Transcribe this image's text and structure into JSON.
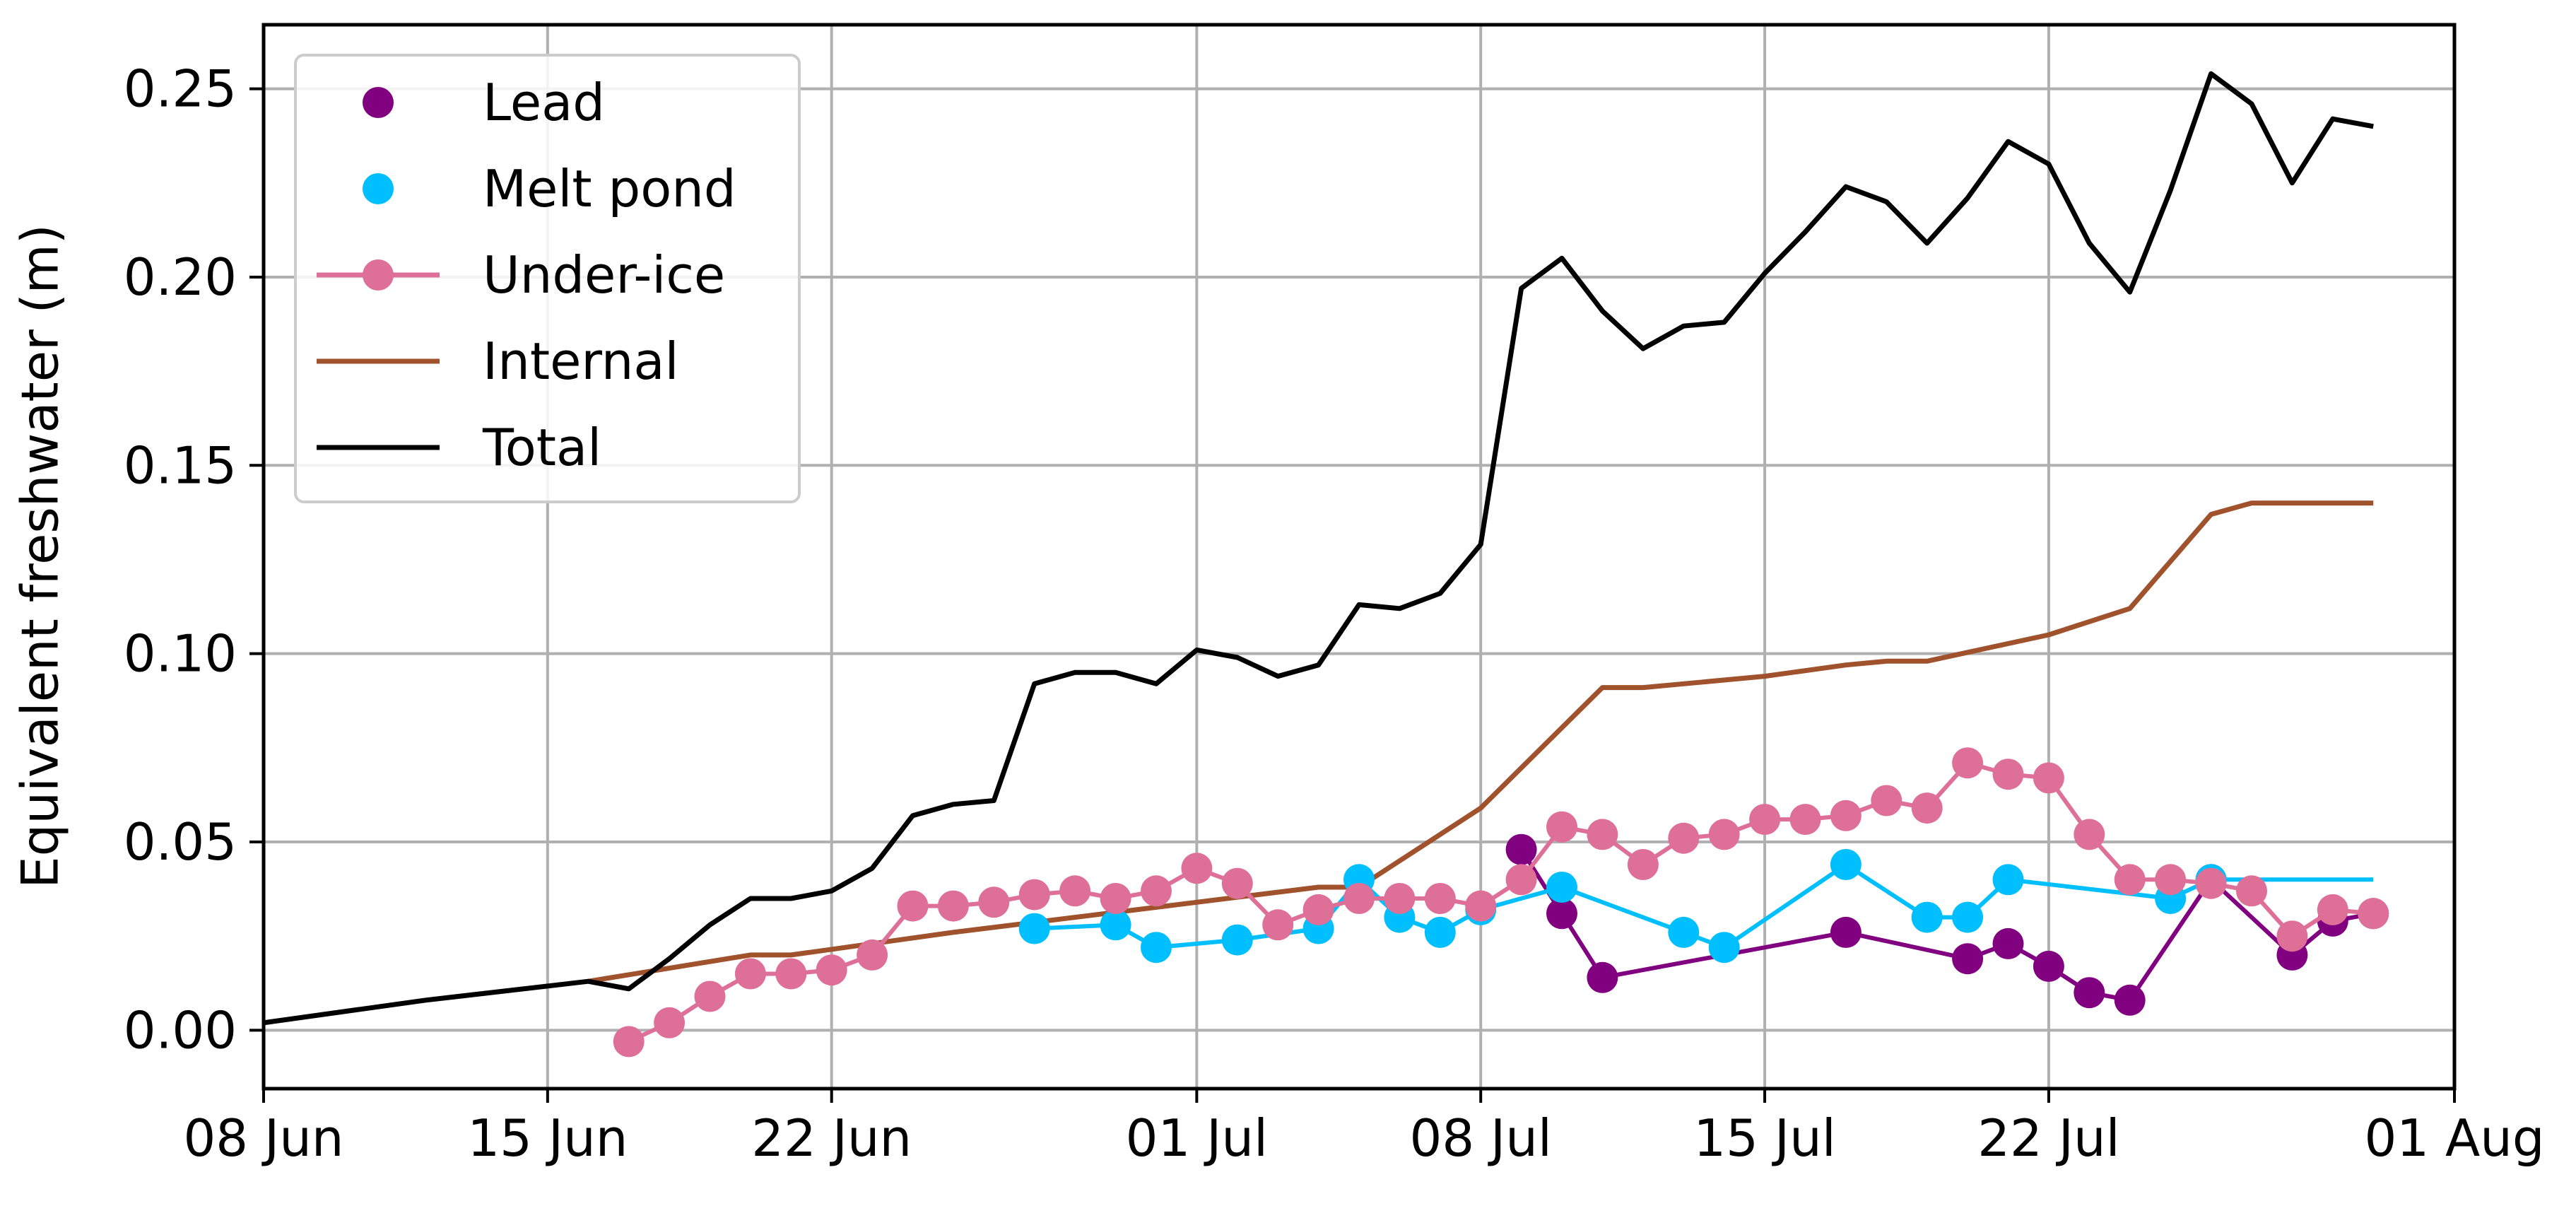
{
  "chart_data": {
    "type": "line",
    "title": "",
    "xlabel": "",
    "ylabel": "Equivalent freshwater (m)",
    "x_axis": {
      "type": "date",
      "range": [
        "2020-06-08",
        "2020-08-01"
      ],
      "ticks": [
        {
          "date": "2020-06-08",
          "label": "08 Jun"
        },
        {
          "date": "2020-06-15",
          "label": "15 Jun"
        },
        {
          "date": "2020-06-22",
          "label": "22 Jun"
        },
        {
          "date": "2020-07-01",
          "label": "01 Jul"
        },
        {
          "date": "2020-07-08",
          "label": "08 Jul"
        },
        {
          "date": "2020-07-15",
          "label": "15 Jul"
        },
        {
          "date": "2020-07-22",
          "label": "22 Jul"
        },
        {
          "date": "2020-08-01",
          "label": "01 Aug"
        }
      ]
    },
    "y_axis": {
      "range": [
        -0.0155,
        0.267
      ],
      "ticks": [
        "0.00",
        "0.05",
        "0.10",
        "0.15",
        "0.20",
        "0.25"
      ]
    },
    "grid": true,
    "legend": {
      "position": "top-left",
      "entries": [
        "Lead",
        "Melt pond",
        "Under-ice",
        "Internal",
        "Total"
      ]
    },
    "series": [
      {
        "name": "Lead",
        "color": "#800080",
        "style": "line-markers",
        "points": [
          [
            "2020-07-09",
            0.048
          ],
          [
            "2020-07-10",
            0.031
          ],
          [
            "2020-07-11",
            0.014
          ],
          [
            "2020-07-17",
            0.026
          ],
          [
            "2020-07-20",
            0.019
          ],
          [
            "2020-07-21",
            0.023
          ],
          [
            "2020-07-22",
            0.017
          ],
          [
            "2020-07-23",
            0.01
          ],
          [
            "2020-07-24",
            0.008
          ],
          [
            "2020-07-26",
            0.04
          ],
          [
            "2020-07-28",
            0.02
          ],
          [
            "2020-07-29",
            0.029
          ],
          [
            "2020-07-30",
            0.031
          ]
        ]
      },
      {
        "name": "Melt pond",
        "color": "#00BFFF",
        "style": "line-markers",
        "points": [
          [
            "2020-06-27",
            0.027
          ],
          [
            "2020-06-29",
            0.028
          ],
          [
            "2020-06-30",
            0.022
          ],
          [
            "2020-07-02",
            0.024
          ],
          [
            "2020-07-04",
            0.027
          ],
          [
            "2020-07-05",
            0.04
          ],
          [
            "2020-07-06",
            0.03
          ],
          [
            "2020-07-07",
            0.026
          ],
          [
            "2020-07-08",
            0.032
          ],
          [
            "2020-07-10",
            0.038
          ],
          [
            "2020-07-13",
            0.026
          ],
          [
            "2020-07-14",
            0.022
          ],
          [
            "2020-07-17",
            0.044
          ],
          [
            "2020-07-19",
            0.03
          ],
          [
            "2020-07-20",
            0.03
          ],
          [
            "2020-07-21",
            0.04
          ],
          [
            "2020-07-25",
            0.035
          ],
          [
            "2020-07-26",
            0.04
          ],
          [
            "2020-07-30",
            0.04
          ]
        ],
        "unmarked_from": "2020-07-27"
      },
      {
        "name": "Under-ice",
        "color": "#DE7098",
        "style": "line-markers",
        "points": [
          [
            "2020-06-17",
            -0.003
          ],
          [
            "2020-06-18",
            0.002
          ],
          [
            "2020-06-19",
            0.009
          ],
          [
            "2020-06-20",
            0.015
          ],
          [
            "2020-06-21",
            0.015
          ],
          [
            "2020-06-22",
            0.016
          ],
          [
            "2020-06-23",
            0.02
          ],
          [
            "2020-06-24",
            0.033
          ],
          [
            "2020-06-25",
            0.033
          ],
          [
            "2020-06-26",
            0.034
          ],
          [
            "2020-06-27",
            0.036
          ],
          [
            "2020-06-28",
            0.037
          ],
          [
            "2020-06-29",
            0.035
          ],
          [
            "2020-06-30",
            0.037
          ],
          [
            "2020-07-01",
            0.043
          ],
          [
            "2020-07-02",
            0.039
          ],
          [
            "2020-07-03",
            0.028
          ],
          [
            "2020-07-04",
            0.032
          ],
          [
            "2020-07-05",
            0.035
          ],
          [
            "2020-07-06",
            0.035
          ],
          [
            "2020-07-07",
            0.035
          ],
          [
            "2020-07-08",
            0.033
          ],
          [
            "2020-07-09",
            0.04
          ],
          [
            "2020-07-10",
            0.054
          ],
          [
            "2020-07-11",
            0.052
          ],
          [
            "2020-07-12",
            0.044
          ],
          [
            "2020-07-13",
            0.051
          ],
          [
            "2020-07-14",
            0.052
          ],
          [
            "2020-07-15",
            0.056
          ],
          [
            "2020-07-16",
            0.056
          ],
          [
            "2020-07-17",
            0.057
          ],
          [
            "2020-07-18",
            0.061
          ],
          [
            "2020-07-19",
            0.059
          ],
          [
            "2020-07-20",
            0.071
          ],
          [
            "2020-07-21",
            0.068
          ],
          [
            "2020-07-22",
            0.067
          ],
          [
            "2020-07-23",
            0.052
          ],
          [
            "2020-07-24",
            0.04
          ],
          [
            "2020-07-25",
            0.04
          ],
          [
            "2020-07-26",
            0.039
          ],
          [
            "2020-07-27",
            0.037
          ],
          [
            "2020-07-28",
            0.025
          ],
          [
            "2020-07-29",
            0.032
          ],
          [
            "2020-07-30",
            0.031
          ]
        ]
      },
      {
        "name": "Internal",
        "color": "#A0522D",
        "style": "line",
        "points": [
          [
            "2020-06-16",
            0.013
          ],
          [
            "2020-06-20",
            0.02
          ],
          [
            "2020-06-21",
            0.02
          ],
          [
            "2020-06-25",
            0.026
          ],
          [
            "2020-07-01",
            0.034
          ],
          [
            "2020-07-04",
            0.038
          ],
          [
            "2020-07-05",
            0.038
          ],
          [
            "2020-07-08",
            0.059
          ],
          [
            "2020-07-11",
            0.091
          ],
          [
            "2020-07-12",
            0.091
          ],
          [
            "2020-07-13",
            0.092
          ],
          [
            "2020-07-15",
            0.094
          ],
          [
            "2020-07-17",
            0.097
          ],
          [
            "2020-07-18",
            0.098
          ],
          [
            "2020-07-19",
            0.098
          ],
          [
            "2020-07-22",
            0.105
          ],
          [
            "2020-07-24",
            0.112
          ],
          [
            "2020-07-26",
            0.137
          ],
          [
            "2020-07-27",
            0.14
          ],
          [
            "2020-07-30",
            0.14
          ]
        ]
      },
      {
        "name": "Total",
        "color": "#000000",
        "style": "line",
        "points": [
          [
            "2020-06-08",
            0.002
          ],
          [
            "2020-06-12",
            0.008
          ],
          [
            "2020-06-16",
            0.013
          ],
          [
            "2020-06-17",
            0.011
          ],
          [
            "2020-06-18",
            0.019
          ],
          [
            "2020-06-19",
            0.028
          ],
          [
            "2020-06-20",
            0.035
          ],
          [
            "2020-06-21",
            0.035
          ],
          [
            "2020-06-22",
            0.037
          ],
          [
            "2020-06-23",
            0.043
          ],
          [
            "2020-06-24",
            0.057
          ],
          [
            "2020-06-25",
            0.06
          ],
          [
            "2020-06-26",
            0.061
          ],
          [
            "2020-06-27",
            0.092
          ],
          [
            "2020-06-28",
            0.095
          ],
          [
            "2020-06-29",
            0.095
          ],
          [
            "2020-06-30",
            0.092
          ],
          [
            "2020-07-01",
            0.101
          ],
          [
            "2020-07-02",
            0.099
          ],
          [
            "2020-07-03",
            0.094
          ],
          [
            "2020-07-04",
            0.097
          ],
          [
            "2020-07-05",
            0.113
          ],
          [
            "2020-07-06",
            0.112
          ],
          [
            "2020-07-07",
            0.116
          ],
          [
            "2020-07-08",
            0.129
          ],
          [
            "2020-07-09",
            0.197
          ],
          [
            "2020-07-10",
            0.205
          ],
          [
            "2020-07-11",
            0.191
          ],
          [
            "2020-07-12",
            0.181
          ],
          [
            "2020-07-13",
            0.187
          ],
          [
            "2020-07-14",
            0.188
          ],
          [
            "2020-07-15",
            0.201
          ],
          [
            "2020-07-16",
            0.212
          ],
          [
            "2020-07-17",
            0.224
          ],
          [
            "2020-07-18",
            0.22
          ],
          [
            "2020-07-19",
            0.209
          ],
          [
            "2020-07-20",
            0.221
          ],
          [
            "2020-07-21",
            0.236
          ],
          [
            "2020-07-22",
            0.23
          ],
          [
            "2020-07-23",
            0.209
          ],
          [
            "2020-07-24",
            0.196
          ],
          [
            "2020-07-25",
            0.223
          ],
          [
            "2020-07-26",
            0.254
          ],
          [
            "2020-07-27",
            0.246
          ],
          [
            "2020-07-28",
            0.225
          ],
          [
            "2020-07-29",
            0.242
          ],
          [
            "2020-07-30",
            0.24
          ]
        ]
      }
    ]
  }
}
